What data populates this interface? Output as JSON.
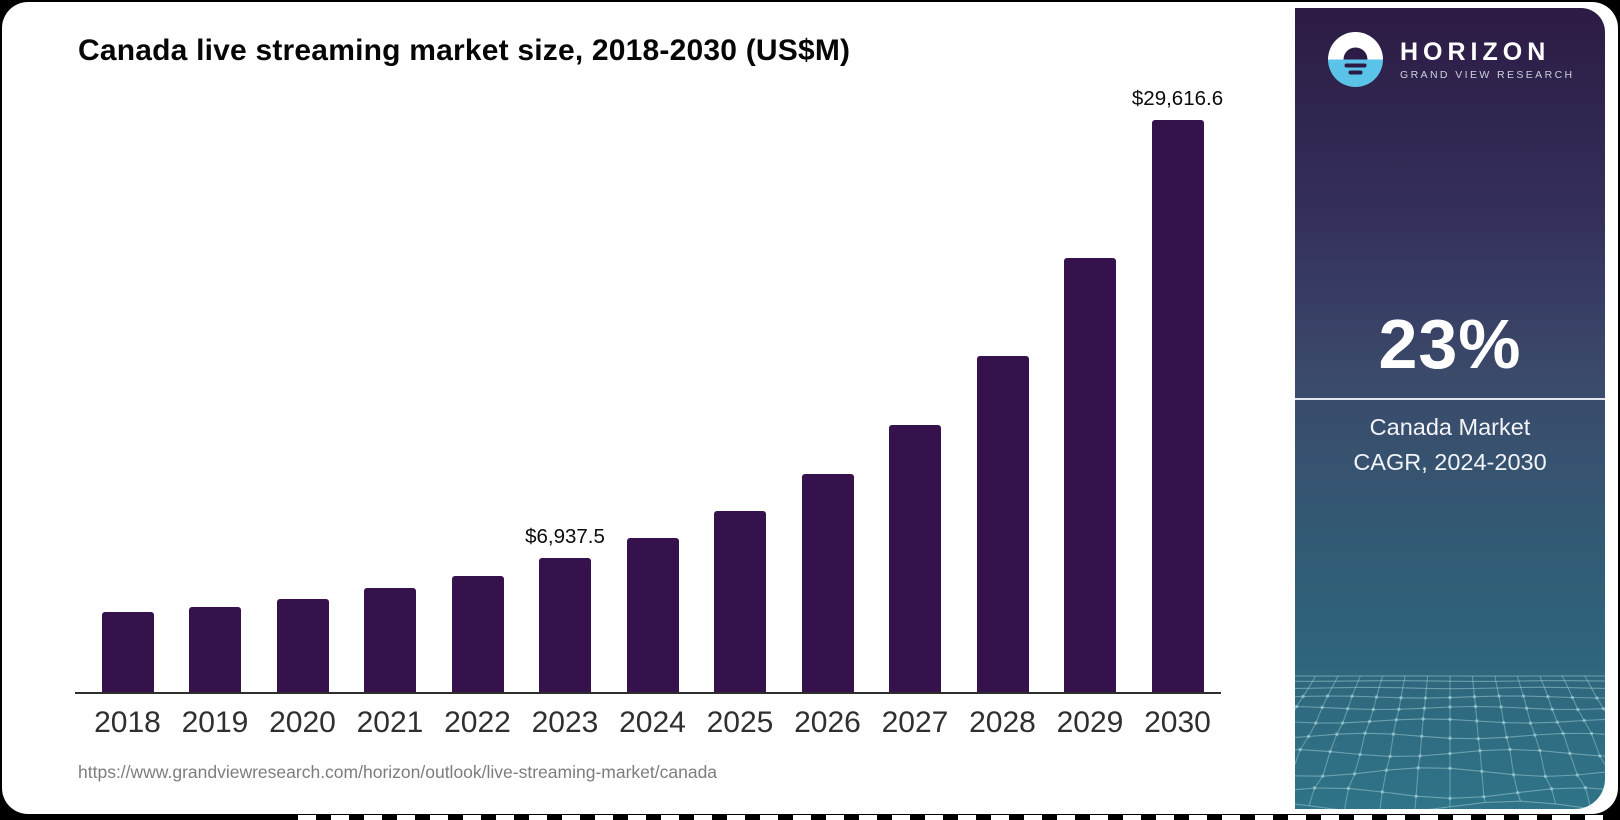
{
  "card": {
    "title": "Canada live streaming market size, 2018-2030 (US$M)",
    "source_url": "https://www.grandviewresearch.com/horizon/outlook/live-streaming-market/canada"
  },
  "sidebar": {
    "brand_name": "HORIZON",
    "brand_subtitle": "GRAND VIEW RESEARCH",
    "stat_value": "23%",
    "stat_caption_line1": "Canada Market",
    "stat_caption_line2": "CAGR, 2024-2030",
    "logo_icon": "horizon-sunrise-icon",
    "colors": {
      "gradient_top": "#2c1b44",
      "gradient_upper_mid": "#34305a",
      "gradient_mid": "#3b4a6b",
      "gradient_lower_mid": "#2f6077",
      "gradient_bottom": "#2f7488",
      "accent_blue": "#5cc3e8",
      "mesh_line": "#a8d3da",
      "text_white": "#ffffff"
    }
  },
  "chart_data": {
    "type": "bar",
    "title": "Canada live streaming market size, 2018-2030 (US$M)",
    "unit": "US$M",
    "categories": [
      "2018",
      "2019",
      "2020",
      "2021",
      "2022",
      "2023",
      "2024",
      "2025",
      "2026",
      "2027",
      "2028",
      "2029",
      "2030"
    ],
    "values": [
      4140,
      4420,
      4830,
      5400,
      6030,
      6937.5,
      7970,
      9380,
      11270,
      13830,
      17400,
      22480,
      29616.6
    ],
    "value_labels": [
      "",
      "",
      "",
      "",
      "",
      "$6,937.5",
      "",
      "",
      "",
      "",
      "",
      "",
      "$29,616.6"
    ],
    "labeled_points_note": "only 2023 and 2030 carry data labels; other values estimated from bar heights",
    "bar_color": "#35124b",
    "axis_color": "#2e2e2e",
    "ylim": [
      0,
      30000
    ],
    "grid": false,
    "legend": false,
    "xlabel": "",
    "ylabel": ""
  }
}
